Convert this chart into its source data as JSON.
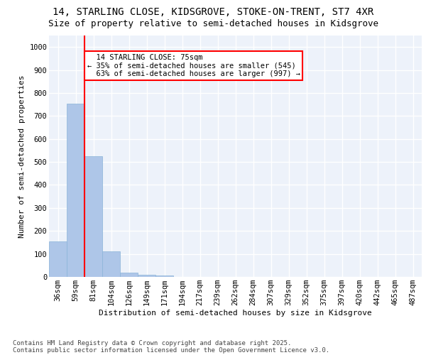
{
  "title_line1": "14, STARLING CLOSE, KIDSGROVE, STOKE-ON-TRENT, ST7 4XR",
  "title_line2": "Size of property relative to semi-detached houses in Kidsgrove",
  "xlabel": "Distribution of semi-detached houses by size in Kidsgrove",
  "ylabel": "Number of semi-detached properties",
  "categories": [
    "36sqm",
    "59sqm",
    "81sqm",
    "104sqm",
    "126sqm",
    "149sqm",
    "171sqm",
    "194sqm",
    "217sqm",
    "239sqm",
    "262sqm",
    "284sqm",
    "307sqm",
    "329sqm",
    "352sqm",
    "375sqm",
    "397sqm",
    "420sqm",
    "442sqm",
    "465sqm",
    "487sqm"
  ],
  "values": [
    155,
    755,
    525,
    112,
    20,
    10,
    5,
    0,
    0,
    0,
    0,
    0,
    0,
    0,
    0,
    0,
    0,
    0,
    0,
    0,
    0
  ],
  "bar_color": "#aec6e8",
  "bar_edge_color": "#8ab4d8",
  "pct_smaller": 35,
  "pct_smaller_count": 545,
  "pct_larger": 63,
  "pct_larger_count": 997,
  "property_size": 75,
  "property_label": "14 STARLING CLOSE: 75sqm",
  "annotation_box_color": "#cc0000",
  "ylim": [
    0,
    1050
  ],
  "yticks": [
    0,
    100,
    200,
    300,
    400,
    500,
    600,
    700,
    800,
    900,
    1000
  ],
  "background_color": "#edf2fa",
  "grid_color": "#ffffff",
  "footer_line1": "Contains HM Land Registry data © Crown copyright and database right 2025.",
  "footer_line2": "Contains public sector information licensed under the Open Government Licence v3.0.",
  "title_fontsize": 10,
  "subtitle_fontsize": 9,
  "label_fontsize": 8,
  "tick_fontsize": 7.5,
  "annot_fontsize": 7.5,
  "footer_fontsize": 6.5
}
